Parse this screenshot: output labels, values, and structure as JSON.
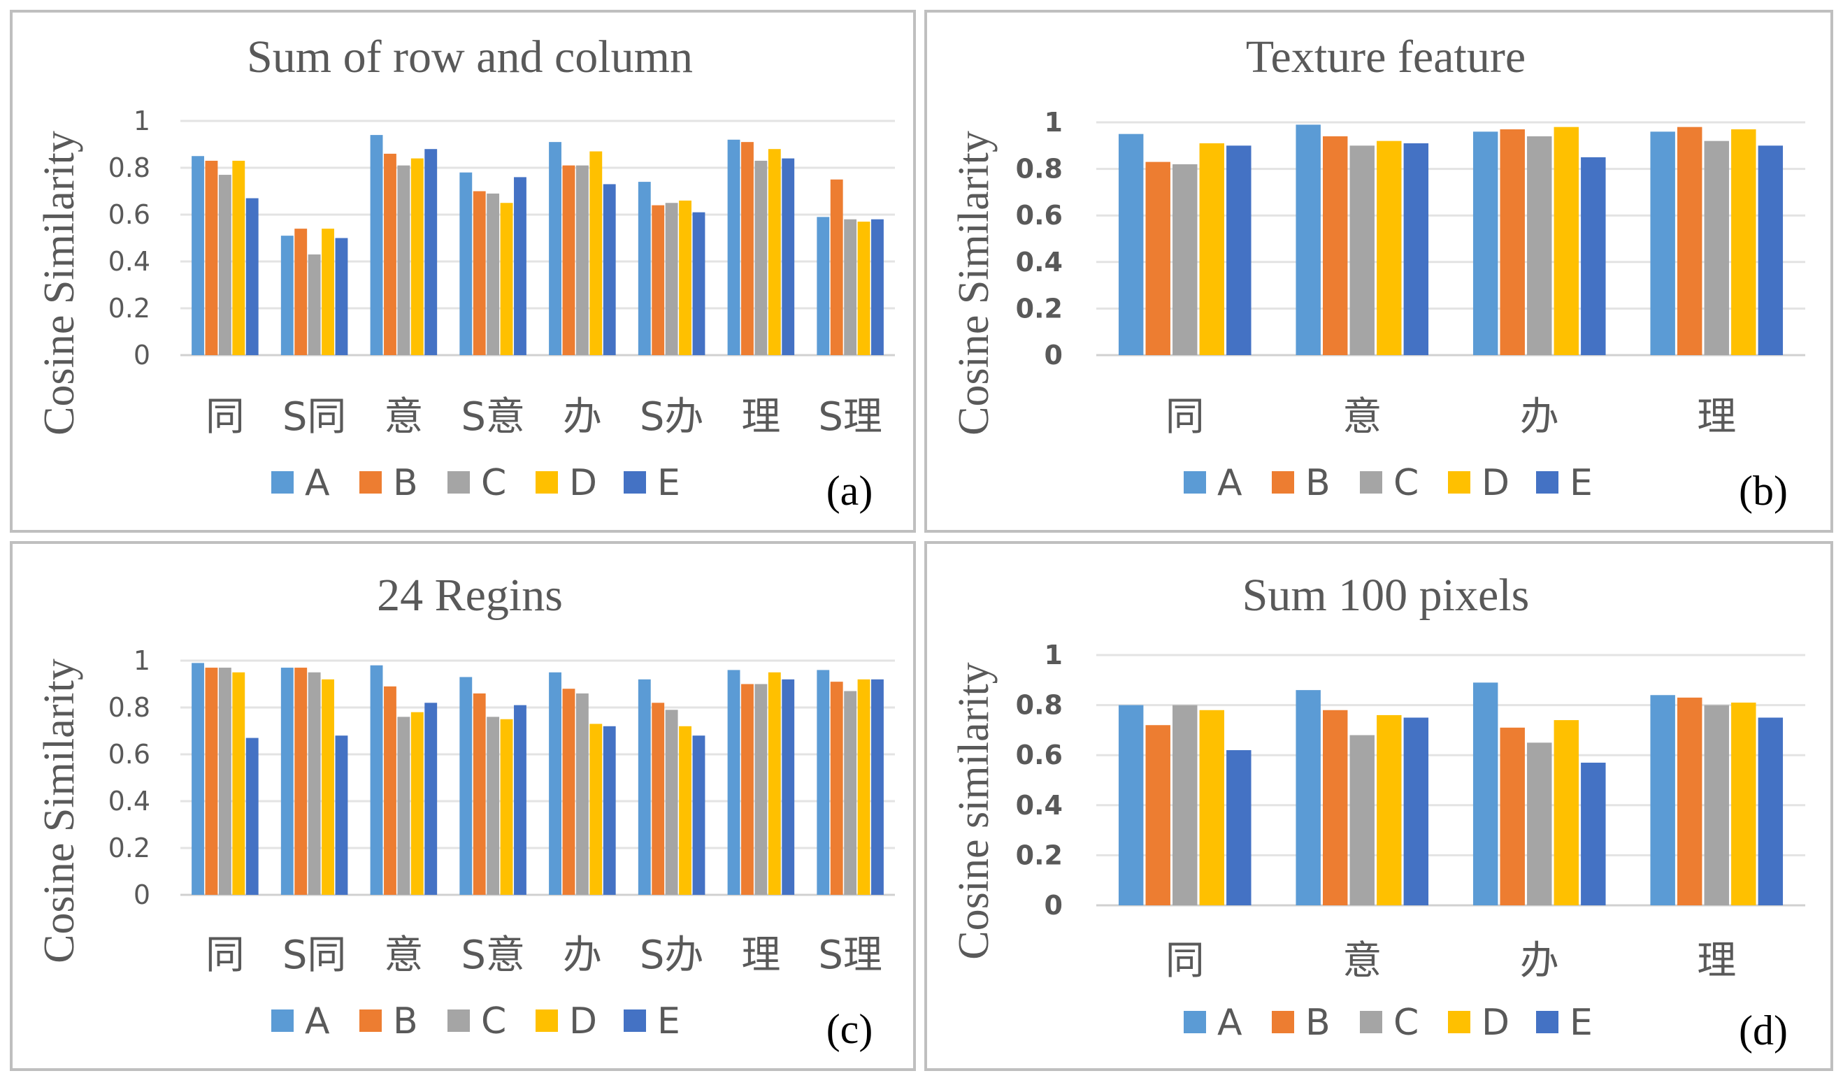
{
  "legend_colors": {
    "A": "#5B9BD5",
    "B": "#ED7D31",
    "C": "#A5A5A5",
    "D": "#FFC000",
    "E": "#4472C4"
  },
  "chart_data": [
    {
      "type": "bar",
      "panel_label": "(a)",
      "title": "Sum of row and column",
      "xlabel": "",
      "ylabel": "Cosine Similarity",
      "ylim": [
        0,
        1
      ],
      "yticks": [
        "0",
        "0.2",
        "0.4",
        "0.6",
        "0.8",
        "1"
      ],
      "grid": true,
      "legend_position": "bottom",
      "categories": [
        "同",
        "S同",
        "意",
        "S意",
        "办",
        "S办",
        "理",
        "S理"
      ],
      "series": [
        {
          "name": "A",
          "values": [
            0.85,
            0.51,
            0.94,
            0.78,
            0.91,
            0.74,
            0.92,
            0.59
          ]
        },
        {
          "name": "B",
          "values": [
            0.83,
            0.54,
            0.86,
            0.7,
            0.81,
            0.64,
            0.91,
            0.75
          ]
        },
        {
          "name": "C",
          "values": [
            0.77,
            0.43,
            0.81,
            0.69,
            0.81,
            0.65,
            0.83,
            0.58
          ]
        },
        {
          "name": "D",
          "values": [
            0.83,
            0.54,
            0.84,
            0.65,
            0.87,
            0.66,
            0.88,
            0.57
          ]
        },
        {
          "name": "E",
          "values": [
            0.67,
            0.5,
            0.88,
            0.76,
            0.73,
            0.61,
            0.84,
            0.58
          ]
        }
      ]
    },
    {
      "type": "bar",
      "panel_label": "(b)",
      "title": "Texture feature",
      "xlabel": "",
      "ylabel": "Cosine Similarity",
      "ylim": [
        0,
        1
      ],
      "yticks": [
        "0",
        "0.2",
        "0.4",
        "0.6",
        "0.8",
        "1"
      ],
      "grid": true,
      "legend_position": "bottom",
      "categories": [
        "同",
        "意",
        "办",
        "理"
      ],
      "series": [
        {
          "name": "A",
          "values": [
            0.95,
            0.99,
            0.96,
            0.96
          ]
        },
        {
          "name": "B",
          "values": [
            0.83,
            0.94,
            0.97,
            0.98
          ]
        },
        {
          "name": "C",
          "values": [
            0.82,
            0.9,
            0.94,
            0.92
          ]
        },
        {
          "name": "D",
          "values": [
            0.91,
            0.92,
            0.98,
            0.97
          ]
        },
        {
          "name": "E",
          "values": [
            0.9,
            0.91,
            0.85,
            0.9
          ]
        }
      ]
    },
    {
      "type": "bar",
      "panel_label": "(c)",
      "title": "24 Regins",
      "xlabel": "",
      "ylabel": "Cosine Similarity",
      "ylim": [
        0,
        1
      ],
      "yticks": [
        "0",
        "0.2",
        "0.4",
        "0.6",
        "0.8",
        "1"
      ],
      "grid": true,
      "legend_position": "bottom",
      "categories": [
        "同",
        "S同",
        "意",
        "S意",
        "办",
        "S办",
        "理",
        "S理"
      ],
      "series": [
        {
          "name": "A",
          "values": [
            0.99,
            0.97,
            0.98,
            0.93,
            0.95,
            0.92,
            0.96,
            0.96
          ]
        },
        {
          "name": "B",
          "values": [
            0.97,
            0.97,
            0.89,
            0.86,
            0.88,
            0.82,
            0.9,
            0.91
          ]
        },
        {
          "name": "C",
          "values": [
            0.97,
            0.95,
            0.76,
            0.76,
            0.86,
            0.79,
            0.9,
            0.87
          ]
        },
        {
          "name": "D",
          "values": [
            0.95,
            0.92,
            0.78,
            0.75,
            0.73,
            0.72,
            0.95,
            0.92
          ]
        },
        {
          "name": "E",
          "values": [
            0.67,
            0.68,
            0.82,
            0.81,
            0.72,
            0.68,
            0.92,
            0.92
          ]
        }
      ]
    },
    {
      "type": "bar",
      "panel_label": "(d)",
      "title": "Sum 100 pixels",
      "xlabel": "",
      "ylabel": "Cosine similarity",
      "ylim": [
        0,
        1
      ],
      "yticks": [
        "0",
        "0.2",
        "0.4",
        "0.6",
        "0.8",
        "1"
      ],
      "grid": true,
      "legend_position": "bottom",
      "categories": [
        "同",
        "意",
        "办",
        "理"
      ],
      "series": [
        {
          "name": "A",
          "values": [
            0.8,
            0.86,
            0.89,
            0.84
          ]
        },
        {
          "name": "B",
          "values": [
            0.72,
            0.78,
            0.71,
            0.83
          ]
        },
        {
          "name": "C",
          "values": [
            0.8,
            0.68,
            0.65,
            0.8
          ]
        },
        {
          "name": "D",
          "values": [
            0.78,
            0.76,
            0.74,
            0.81
          ]
        },
        {
          "name": "E",
          "values": [
            0.62,
            0.75,
            0.57,
            0.75
          ]
        }
      ]
    }
  ]
}
